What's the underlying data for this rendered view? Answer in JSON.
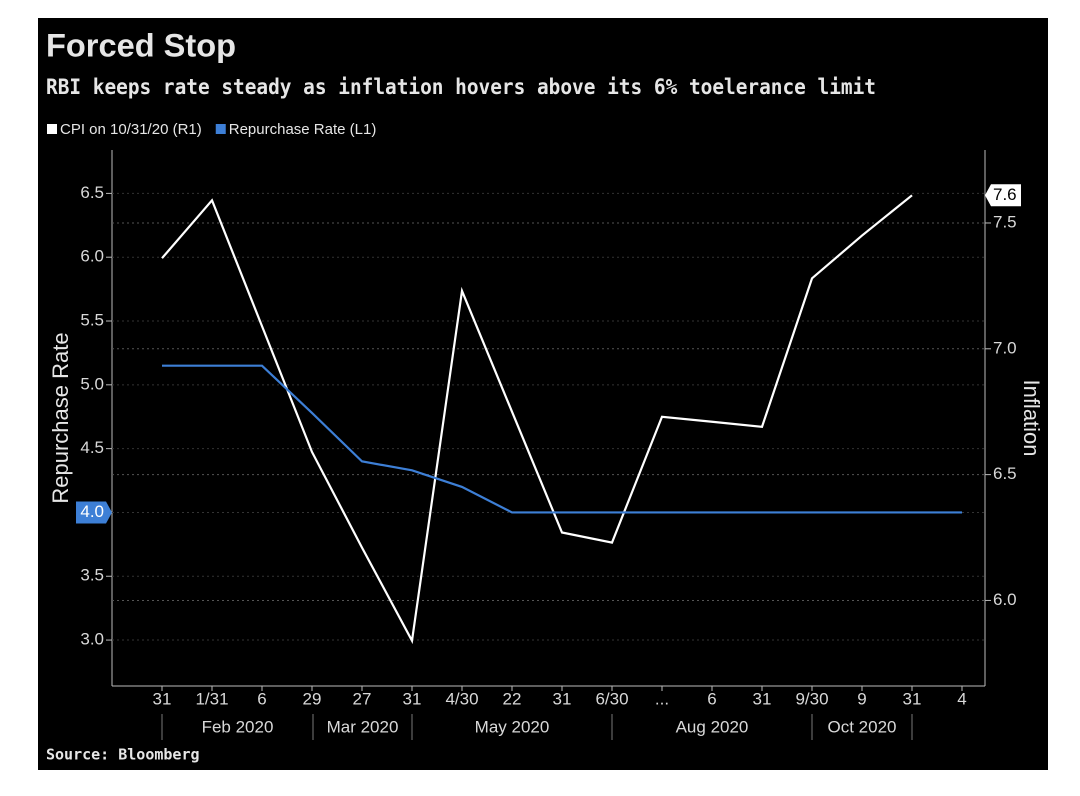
{
  "chart_data": {
    "type": "line",
    "title": "Forced Stop",
    "subtitle": "RBI keeps rate steady as inflation hovers above its 6% toelerance limit",
    "source": "Source: Bloomberg",
    "y_label": "Repurchase Rate",
    "y2_label": "Inflation",
    "categories": [
      "31",
      "1/31",
      "6",
      "29",
      "27",
      "31",
      "4/30",
      "22",
      "31",
      "6/30",
      "...",
      "6",
      "31",
      "9/30",
      "9",
      "31",
      "4"
    ],
    "category_groups": [
      "Feb 2020",
      "Mar 2020",
      "May 2020",
      "Aug 2020",
      "Oct 2020"
    ],
    "series": [
      {
        "name": "CPI on 10/31/20 (R1)",
        "color": "#ffffff",
        "axis": "y2",
        "values": [
          7.36,
          7.59,
          7.09,
          6.59,
          6.21,
          5.84,
          7.23,
          6.75,
          6.27,
          6.23,
          6.73,
          6.71,
          6.69,
          7.28,
          7.45,
          7.61,
          null
        ],
        "value_labels": [
          null,
          null,
          null,
          null,
          null,
          null,
          null,
          null,
          null,
          null,
          null,
          null,
          null,
          null,
          null,
          "7.6",
          null
        ]
      },
      {
        "name": "Repurchase Rate (L1)",
        "color": "#3d7fd6",
        "values": [
          5.15,
          5.15,
          5.15,
          4.78,
          4.4,
          4.33,
          4.2,
          4.0,
          4.0,
          4.0,
          4.0,
          4.0,
          4.0,
          4.0,
          4.0,
          4.0,
          4.0
        ],
        "value_labels": [
          null,
          null,
          null,
          null,
          null,
          null,
          null,
          null,
          null,
          null,
          null,
          null,
          null,
          null,
          null,
          null,
          "4.0"
        ]
      }
    ],
    "ylim": [
      2.64,
      6.84
    ],
    "yticks": [
      {
        "value": 3,
        "label": "3.0"
      },
      3.5,
      {
        "value": 4,
        "label": "4.0"
      },
      4.5,
      {
        "value": 5,
        "label": "5.0"
      },
      5.5,
      {
        "value": 6,
        "label": "6.0"
      },
      6.5
    ],
    "y2lim": [
      5.66,
      7.79
    ],
    "y2ticks": [
      {
        "value": 6,
        "label": "6.0"
      },
      6.5,
      {
        "value": 7,
        "label": "7.0"
      },
      7.5
    ],
    "grid": true
  }
}
